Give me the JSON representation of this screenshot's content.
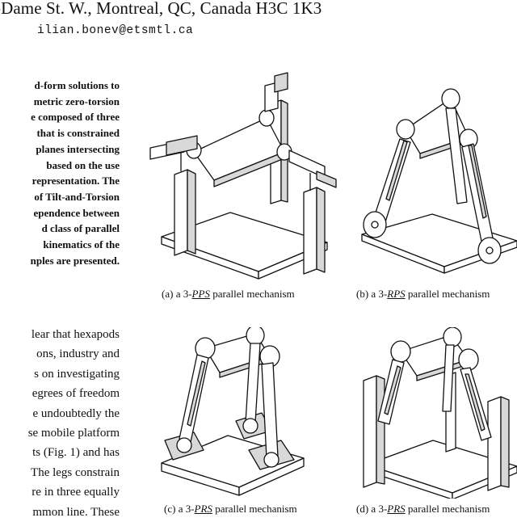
{
  "header": {
    "address": "-Dame St. W., Montreal, QC, Canada H3C 1K3",
    "email": "ilian.bonev@etsmtl.ca"
  },
  "abstract_lines": [
    "d-form solutions to",
    "metric zero-torsion",
    "e composed of three",
    "that is constrained",
    "planes intersecting",
    "based on the use",
    "representation. The",
    "of Tilt-and-Torsion",
    "ependence between",
    "d class of parallel",
    "kinematics of the",
    "nples are presented."
  ],
  "body_lines": [
    "lear that hexapods",
    "ons, industry and",
    "s on investigating",
    "egrees of freedom",
    "e undoubtedly the",
    "se mobile platform",
    "ts (Fig. 1) and has",
    "The legs constrain",
    "re in three equally",
    "mmon line. These"
  ],
  "figures": [
    {
      "label": "(a)",
      "prefix": "a 3-",
      "joints": "PPS",
      "suffix": " parallel mechanism"
    },
    {
      "label": "(b)",
      "prefix": "a 3-",
      "joints": "RPS",
      "suffix": " parallel mechanism"
    },
    {
      "label": "(c)",
      "prefix": "a 3-",
      "joints": "PRS",
      "suffix": " parallel mechanism"
    },
    {
      "label": "(d)",
      "prefix": "a 3-",
      "joints": "PRS",
      "suffix": " parallel mechanism"
    }
  ]
}
